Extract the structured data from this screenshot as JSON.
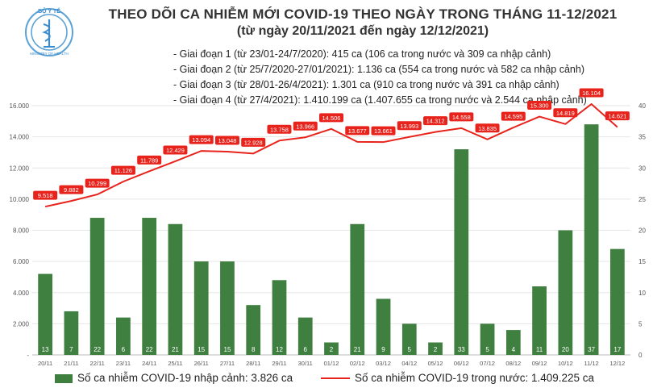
{
  "header": {
    "title": "THEO DÕI CA NHIỄM MỚI COVID-19 THEO NGÀY TRONG THÁNG 11-12/2021",
    "subtitle": "(từ ngày 20/11/2021 đến ngày 12/12/2021)",
    "logo_text": "BỘ Y TẾ",
    "logo_ring_text": "MINISTRY OF HEALTH"
  },
  "notes": [
    "- Giai đoạn 1 (từ 23/01-24/7/2020): 415 ca (106 ca trong nước và 309 ca nhập cảnh)",
    "- Giai đoạn 2 (từ 25/7/2020-27/01/2021): 1.136 ca (554 ca trong nước và 582 ca nhập cảnh)",
    "- Giai đoạn 3 (từ 28/01-26/4/2021): 1.301 ca (910 ca trong nước và 391 ca nhập cảnh)",
    "- Giai đoạn 4 (từ 27/4/2021): 1.410.199 ca (1.407.655 ca trong nước và 2.544 ca nhập cảnh)"
  ],
  "legend": {
    "bar_label": "Số ca nhiễm COVID-19 nhập cảnh: 3.826 ca",
    "line_label": "Số ca nhiễm COVID-19 trong nước: 1.409.225 ca"
  },
  "colors": {
    "bar": "#3f7f3f",
    "line": "#e8231c",
    "bar_label": "#ffffff",
    "grid": "#e6e6e6",
    "axis_text": "#555555"
  },
  "chart_data": {
    "type": "bar+line",
    "categories": [
      "20/11",
      "21/11",
      "22/11",
      "23/11",
      "24/11",
      "25/11",
      "26/11",
      "27/11",
      "28/11",
      "29/11",
      "30/11",
      "01/12",
      "02/12",
      "03/12",
      "04/12",
      "05/12",
      "06/12",
      "07/12",
      "08/12",
      "09/12",
      "10/12",
      "11/12",
      "12/12"
    ],
    "left_axis": {
      "ticks": [
        "-",
        "2.000",
        "4.000",
        "6.000",
        "8.000",
        "10.000",
        "12.000",
        "14.000",
        "16.000"
      ],
      "range": [
        0,
        16000
      ]
    },
    "right_axis": {
      "ticks": [
        "0",
        "5",
        "10",
        "15",
        "20",
        "25",
        "30",
        "35",
        "40"
      ],
      "range": [
        0,
        40
      ]
    },
    "series": [
      {
        "name": "Số ca nhiễm COVID-19 nhập cảnh",
        "kind": "bar",
        "axis": "right",
        "values": [
          13,
          7,
          22,
          6,
          22,
          21,
          15,
          15,
          8,
          12,
          6,
          2,
          21,
          9,
          5,
          2,
          33,
          5,
          4,
          11,
          20,
          37,
          17
        ],
        "labels": [
          "13",
          "7",
          "22",
          "6",
          "22",
          "21",
          "15",
          "15",
          "8",
          "12",
          "6",
          "2",
          "21",
          "9",
          "5",
          "2",
          "33",
          "5",
          "4",
          "11",
          "20",
          "37",
          "17"
        ]
      },
      {
        "name": "Số ca nhiễm COVID-19 trong nước",
        "kind": "line",
        "axis": "left",
        "values": [
          9518,
          9882,
          10299,
          11126,
          11789,
          12429,
          13094,
          13048,
          12928,
          13758,
          13966,
          14506,
          13677,
          13661,
          13993,
          14312,
          14558,
          13835,
          14595,
          15300,
          14819,
          16104,
          14621
        ],
        "labels": [
          "9.518",
          "9.882",
          "10.299",
          "11.126",
          "11.789",
          "12.429",
          "13.094",
          "13.048",
          "12.928",
          "13.758",
          "13.966",
          "14.506",
          "13.677",
          "13.661",
          "13.993",
          "14.312",
          "14.558",
          "13.835",
          "14.595",
          "15.300",
          "14.819",
          "16.104",
          "14.621"
        ]
      }
    ],
    "grid": true,
    "legend_position": "bottom"
  }
}
